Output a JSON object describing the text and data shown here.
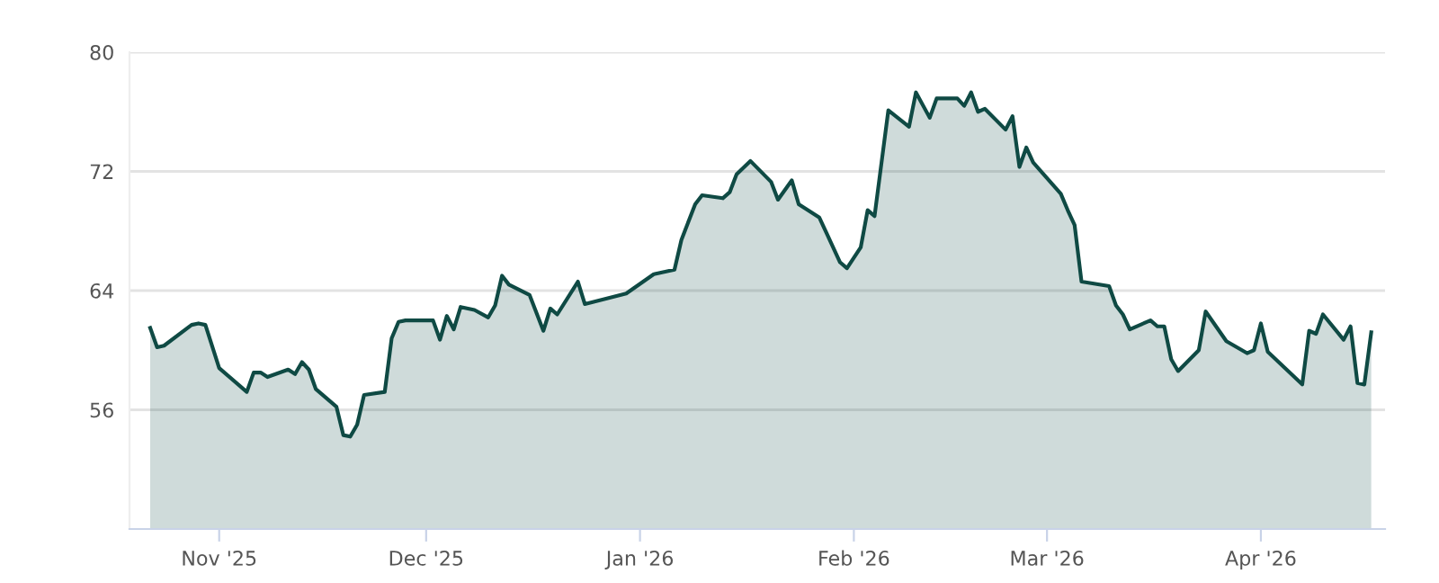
{
  "chart_data": {
    "type": "area",
    "x": [
      "2025-10-22",
      "2025-10-23",
      "2025-10-24",
      "2025-10-28",
      "2025-10-29",
      "2025-10-30",
      "2025-11-01",
      "2025-11-05",
      "2025-11-06",
      "2025-11-07",
      "2025-11-08",
      "2025-11-11",
      "2025-11-12",
      "2025-11-13",
      "2025-11-14",
      "2025-11-15",
      "2025-11-18",
      "2025-11-19",
      "2025-11-20",
      "2025-11-21",
      "2025-11-22",
      "2025-11-25",
      "2025-11-26",
      "2025-11-27",
      "2025-11-28",
      "2025-12-02",
      "2025-12-03",
      "2025-12-04",
      "2025-12-05",
      "2025-12-06",
      "2025-12-08",
      "2025-12-10",
      "2025-12-11",
      "2025-12-12",
      "2025-12-13",
      "2025-12-16",
      "2025-12-18",
      "2025-12-19",
      "2025-12-20",
      "2025-12-23",
      "2025-12-24",
      "2025-12-30",
      "2026-01-03",
      "2026-01-06",
      "2026-01-07",
      "2026-01-09",
      "2026-01-10",
      "2026-01-13",
      "2026-01-14",
      "2026-01-15",
      "2026-01-17",
      "2026-01-20",
      "2026-01-21",
      "2026-01-23",
      "2026-01-24",
      "2026-01-27",
      "2026-01-28",
      "2026-01-30",
      "2026-01-31",
      "2026-02-02",
      "2026-02-03",
      "2026-02-04",
      "2026-02-06",
      "2026-02-09",
      "2026-02-10",
      "2026-02-12",
      "2026-02-13",
      "2026-02-16",
      "2026-02-17",
      "2026-02-18",
      "2026-02-19",
      "2026-02-20",
      "2026-02-23",
      "2026-02-24",
      "2026-02-25",
      "2026-02-26",
      "2026-02-27",
      "2026-03-03",
      "2026-03-04",
      "2026-03-05",
      "2026-03-06",
      "2026-03-10",
      "2026-03-11",
      "2026-03-12",
      "2026-03-13",
      "2026-03-16",
      "2026-03-17",
      "2026-03-18",
      "2026-03-19",
      "2026-03-20",
      "2026-03-23",
      "2026-03-24",
      "2026-03-27",
      "2026-03-30",
      "2026-03-31",
      "2026-04-01",
      "2026-04-02",
      "2026-04-07",
      "2026-04-08",
      "2026-04-09",
      "2026-04-10",
      "2026-04-13",
      "2026-04-14",
      "2026-04-15",
      "2026-04-16",
      "2026-04-17"
    ],
    "series": [
      {
        "color": "#0f4a44",
        "values": [
          61.5,
          60.2,
          60.3,
          61.7,
          61.8,
          61.7,
          58.8,
          57.2,
          58.5,
          58.5,
          58.2,
          58.7,
          58.4,
          59.2,
          58.7,
          57.4,
          56.2,
          54.3,
          54.2,
          55.0,
          57.0,
          57.2,
          60.8,
          61.9,
          62.0,
          62.0,
          60.7,
          62.3,
          61.4,
          62.9,
          62.7,
          62.2,
          63.0,
          65.0,
          64.4,
          63.7,
          61.3,
          62.8,
          62.4,
          64.6,
          63.1,
          63.8,
          65.1,
          65.4,
          67.4,
          69.8,
          70.4,
          70.2,
          70.6,
          71.8,
          72.7,
          71.3,
          70.1,
          71.4,
          69.8,
          68.9,
          67.9,
          65.9,
          65.5,
          66.9,
          69.4,
          69.0,
          76.1,
          75.0,
          77.3,
          75.6,
          76.9,
          76.9,
          76.4,
          77.3,
          76.0,
          76.2,
          74.8,
          75.7,
          72.3,
          73.6,
          72.6,
          70.5,
          69.4,
          68.4,
          64.6,
          64.3,
          63.0,
          62.4,
          61.4,
          62.0,
          61.6,
          61.6,
          59.4,
          58.6,
          60.0,
          62.6,
          60.6,
          59.8,
          60.0,
          61.8,
          59.9,
          57.7,
          61.3,
          61.1,
          62.4,
          60.7,
          61.6,
          57.8,
          57.7,
          61.2
        ]
      }
    ],
    "xlim": [
      "2025-10-19",
      "2026-04-19"
    ],
    "xticks": [
      {
        "value": "2025-11-01",
        "label": "Nov '25"
      },
      {
        "value": "2025-12-01",
        "label": "Dec '25"
      },
      {
        "value": "2026-01-01",
        "label": "Jan '26"
      },
      {
        "value": "2026-02-01",
        "label": "Feb '26"
      },
      {
        "value": "2026-03-01",
        "label": "Mar '26"
      },
      {
        "value": "2026-04-01",
        "label": "Apr '26"
      }
    ],
    "ylim": [
      48,
      80
    ],
    "yticks": [
      56,
      64,
      72,
      80
    ],
    "grid": "y",
    "marker": "none",
    "line_style": "solid"
  }
}
